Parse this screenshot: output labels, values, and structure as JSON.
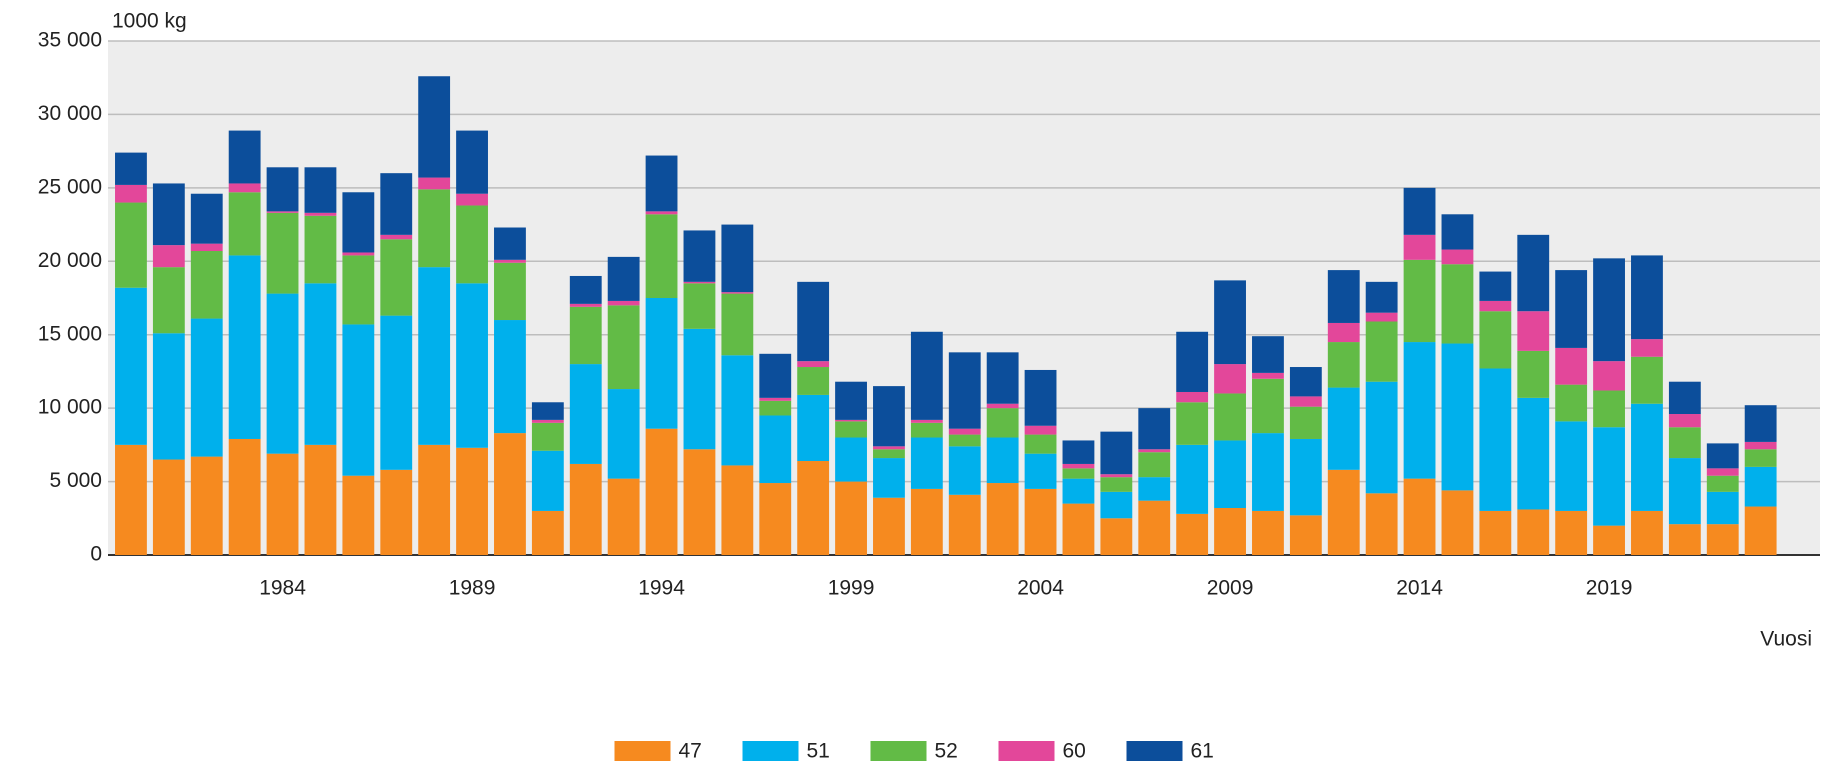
{
  "chart_data": {
    "type": "bar",
    "stacked": true,
    "y_axis_label": "1000 kg",
    "x_axis_label": "Vuosi",
    "categories": [
      null,
      null,
      null,
      null,
      "1984",
      null,
      null,
      null,
      null,
      "1989",
      null,
      null,
      null,
      null,
      "1994",
      null,
      null,
      null,
      null,
      "1999",
      null,
      null,
      null,
      null,
      "2004",
      null,
      null,
      null,
      null,
      "2009",
      null,
      null,
      null,
      null,
      "2014",
      null,
      null,
      null,
      null,
      "2019",
      null,
      null,
      null,
      null
    ],
    "series": [
      {
        "name": "47",
        "color": "#f68a1f",
        "values": [
          7500,
          6500,
          6700,
          7900,
          6900,
          7500,
          5400,
          5800,
          7500,
          7300,
          8300,
          3000,
          6200,
          5200,
          8600,
          7200,
          6100,
          4900,
          6400,
          5000,
          3900,
          4500,
          4100,
          4900,
          4500,
          3500,
          2500,
          3700,
          2800,
          3200,
          3000,
          2700,
          5800,
          4200,
          5200,
          4400,
          3000,
          3100,
          3000,
          2000,
          3000,
          2100,
          2100,
          3300
        ]
      },
      {
        "name": "51",
        "color": "#00b0ec",
        "values": [
          10700,
          8600,
          9400,
          12500,
          10900,
          11000,
          10300,
          10500,
          12100,
          11200,
          7700,
          4100,
          6800,
          6100,
          8900,
          8200,
          7500,
          4600,
          4500,
          3000,
          2700,
          3500,
          3300,
          3100,
          2400,
          1700,
          1800,
          1600,
          4700,
          4600,
          5300,
          5200,
          5600,
          7600,
          9300,
          10000,
          9700,
          7600,
          6100,
          6700,
          7300,
          4500,
          2200,
          2700
        ]
      },
      {
        "name": "52",
        "color": "#62bb46",
        "values": [
          5800,
          4500,
          4600,
          4300,
          5500,
          4600,
          4700,
          5200,
          5300,
          5300,
          3900,
          1900,
          3900,
          5700,
          5700,
          3100,
          4200,
          1000,
          1900,
          1100,
          600,
          1000,
          800,
          2000,
          1300,
          700,
          1000,
          1700,
          2900,
          3200,
          3700,
          2200,
          3100,
          4100,
          5600,
          5400,
          3900,
          3200,
          2500,
          2500,
          3200,
          2100,
          1100,
          1200
        ]
      },
      {
        "name": "60",
        "color": "#e3479a",
        "values": [
          1200,
          1500,
          500,
          600,
          100,
          200,
          200,
          300,
          800,
          800,
          200,
          200,
          200,
          300,
          200,
          100,
          100,
          200,
          400,
          100,
          200,
          200,
          400,
          300,
          600,
          300,
          200,
          200,
          700,
          2000,
          400,
          700,
          1300,
          600,
          1700,
          1000,
          700,
          2700,
          2500,
          2000,
          1200,
          900,
          500,
          500
        ]
      },
      {
        "name": "61",
        "color": "#0c4e9b",
        "values": [
          2200,
          4200,
          3400,
          3600,
          3000,
          3100,
          4100,
          4200,
          6900,
          4300,
          2200,
          1200,
          1900,
          3000,
          3800,
          3500,
          4600,
          3000,
          5400,
          2600,
          4100,
          6000,
          5200,
          3500,
          3800,
          1600,
          2900,
          2800,
          4100,
          5700,
          2500,
          2000,
          3600,
          2100,
          3200,
          2400,
          2000,
          5200,
          5300,
          7000,
          5700,
          2200,
          1700,
          2500
        ]
      }
    ],
    "ylim": [
      0,
      35000
    ],
    "yticks": [
      0,
      {
        "value": 5000,
        "label": "5 000"
      },
      {
        "value": 10000,
        "label": "10 000"
      },
      {
        "value": 15000,
        "label": "15 000"
      },
      {
        "value": 20000,
        "label": "20 000"
      },
      {
        "value": 25000,
        "label": "25 000"
      },
      {
        "value": 30000,
        "label": "30 000"
      },
      {
        "value": 35000,
        "label": "35 000"
      }
    ],
    "grid": true,
    "legend": "bottom"
  }
}
